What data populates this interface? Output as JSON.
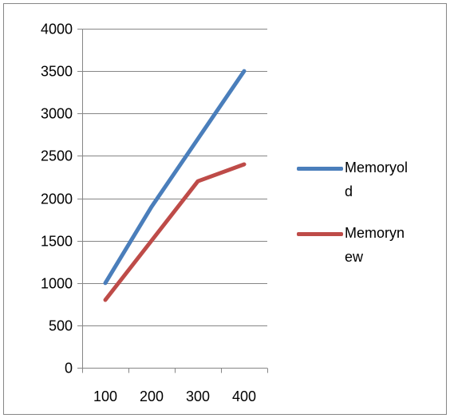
{
  "chart_data": {
    "type": "line",
    "x": [
      100,
      200,
      300,
      400
    ],
    "series": [
      {
        "name": "Memoryold",
        "values": [
          1000,
          1900,
          2700,
          3500
        ],
        "color": "#4a7ebb"
      },
      {
        "name": "Memorynew",
        "values": [
          800,
          1500,
          2200,
          2400
        ],
        "color": "#be4b48"
      }
    ],
    "yticks": [
      0,
      500,
      1000,
      1500,
      2000,
      2500,
      3000,
      3500,
      4000
    ],
    "ylim": [
      0,
      4000
    ],
    "grid": true,
    "legend": "right"
  },
  "colors": {
    "border": "#868686",
    "gridline": "#868686",
    "axis": "#868686"
  }
}
